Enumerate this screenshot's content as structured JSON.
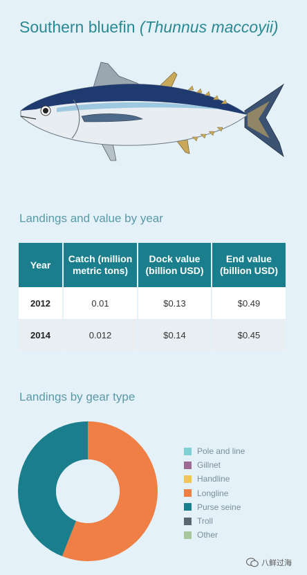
{
  "header": {
    "title_common": "Southern bluefin",
    "title_scientific": "(Thunnus maccoyii)"
  },
  "table_section": {
    "heading": "Landings and value by year"
  },
  "chart_section": {
    "heading": "Landings by gear type"
  },
  "watermark": {
    "text": "八鲜过海"
  },
  "fish_illustration": {
    "icon": "tuna-fish-illustration"
  },
  "chart_data": [
    {
      "type": "table",
      "columns": [
        "Year",
        "Catch (million metric tons)",
        "Dock value (billion USD)",
        "End value (billion USD)"
      ],
      "rows": [
        [
          "2012",
          "0.01",
          "$0.13",
          "$0.49"
        ],
        [
          "2014",
          "0.012",
          "$0.14",
          "$0.45"
        ]
      ]
    },
    {
      "type": "pie",
      "donut": true,
      "legend_position": "right",
      "labels": [
        "Pole and line",
        "Gillnet",
        "Handline",
        "Longline",
        "Purse seine",
        "Troll",
        "Other"
      ],
      "values": [
        0,
        0,
        0,
        56,
        44,
        0,
        0
      ],
      "colors": [
        "#7fd0d3",
        "#9c6b93",
        "#f2c55c",
        "#ef7f45",
        "#1a7e8c",
        "#5b6770",
        "#a9c79c"
      ]
    }
  ]
}
